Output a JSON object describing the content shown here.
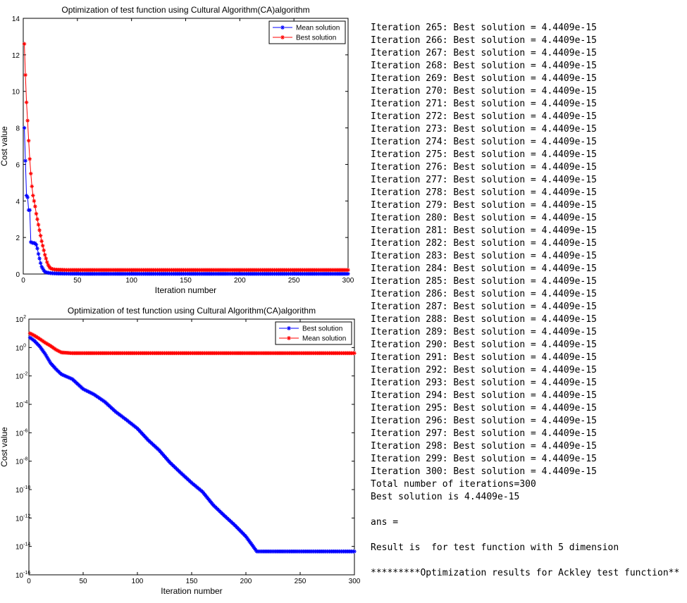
{
  "chart_data": [
    {
      "type": "line",
      "title": "Optimization of test function using Cultural Algorithm(CA)algorithm",
      "xlabel": "Iteration number",
      "ylabel": "Cost value",
      "xlim": [
        0,
        300
      ],
      "ylim": [
        0,
        14
      ],
      "xticks": [
        "0",
        "50",
        "100",
        "150",
        "200",
        "250",
        "300"
      ],
      "yticks": [
        "0",
        "2",
        "4",
        "6",
        "8",
        "10",
        "12",
        "14"
      ],
      "legend_position": "top-right",
      "series": [
        {
          "name": "Mean solution",
          "color": "#0000ff",
          "marker": "star",
          "points": [
            [
              1,
              8.0
            ],
            [
              2,
              6.2
            ],
            [
              3,
              4.3
            ],
            [
              4,
              4.2
            ],
            [
              5,
              3.5
            ],
            [
              6,
              3.5
            ],
            [
              7,
              1.75
            ],
            [
              8,
              1.72
            ],
            [
              9,
              1.7
            ],
            [
              10,
              1.7
            ],
            [
              11,
              1.68
            ],
            [
              12,
              1.6
            ],
            [
              13,
              1.4
            ],
            [
              14,
              1.1
            ],
            [
              15,
              0.85
            ],
            [
              16,
              0.6
            ],
            [
              17,
              0.4
            ],
            [
              18,
              0.3
            ],
            [
              19,
              0.2
            ],
            [
              20,
              0.12
            ],
            [
              22,
              0.08
            ],
            [
              25,
              0.05
            ],
            [
              30,
              0.03
            ],
            [
              40,
              0.02
            ],
            [
              60,
              0.01
            ],
            [
              100,
              0.01
            ],
            [
              150,
              0.01
            ],
            [
              200,
              0.01
            ],
            [
              250,
              0.01
            ],
            [
              300,
              0.01
            ]
          ]
        },
        {
          "name": "Best solution",
          "color": "#ff0000",
          "marker": "star",
          "points": [
            [
              1,
              12.6
            ],
            [
              2,
              10.9
            ],
            [
              3,
              9.4
            ],
            [
              4,
              8.4
            ],
            [
              5,
              7.3
            ],
            [
              6,
              6.3
            ],
            [
              7,
              5.5
            ],
            [
              8,
              4.8
            ],
            [
              9,
              4.3
            ],
            [
              10,
              4.0
            ],
            [
              11,
              3.7
            ],
            [
              12,
              3.3
            ],
            [
              13,
              3.0
            ],
            [
              14,
              2.7
            ],
            [
              15,
              2.4
            ],
            [
              16,
              2.1
            ],
            [
              17,
              1.8
            ],
            [
              18,
              1.55
            ],
            [
              19,
              1.3
            ],
            [
              20,
              1.05
            ],
            [
              21,
              0.85
            ],
            [
              22,
              0.65
            ],
            [
              23,
              0.5
            ],
            [
              24,
              0.4
            ],
            [
              25,
              0.32
            ],
            [
              27,
              0.27
            ],
            [
              30,
              0.24
            ],
            [
              40,
              0.22
            ],
            [
              60,
              0.22
            ],
            [
              100,
              0.22
            ],
            [
              150,
              0.22
            ],
            [
              200,
              0.22
            ],
            [
              250,
              0.22
            ],
            [
              300,
              0.22
            ]
          ]
        }
      ]
    },
    {
      "type": "line",
      "title": "Optimization of test function using Cultural Algorithm(CA)algorithm",
      "xlabel": "Iteration number",
      "ylabel": "Cost value",
      "xlim": [
        0,
        300
      ],
      "ylim": [
        1e-16,
        100
      ],
      "yscale": "log",
      "xticks": [
        "0",
        "50",
        "100",
        "150",
        "200",
        "250",
        "300"
      ],
      "yticks": [
        {
          "value": 100.0,
          "base": "10",
          "exp": "2"
        },
        {
          "value": 1.0,
          "base": "10",
          "exp": "0"
        },
        {
          "value": 0.01,
          "base": "10",
          "exp": "-2"
        },
        {
          "value": 0.0001,
          "base": "10",
          "exp": "-4"
        },
        {
          "value": 1e-06,
          "base": "10",
          "exp": "-6"
        },
        {
          "value": 1e-08,
          "base": "10",
          "exp": "-8"
        },
        {
          "value": 1e-10,
          "base": "10",
          "exp": "-10"
        },
        {
          "value": 1e-12,
          "base": "10",
          "exp": "-12"
        },
        {
          "value": 1e-14,
          "base": "10",
          "exp": "-14"
        },
        {
          "value": 1e-16,
          "base": "10",
          "exp": "-16"
        }
      ],
      "legend_position": "top-right",
      "series": [
        {
          "name": "Best solution",
          "color": "#0000ff",
          "marker": "star",
          "points": [
            [
              1,
              5
            ],
            [
              5,
              3
            ],
            [
              10,
              1.2
            ],
            [
              15,
              0.35
            ],
            [
              20,
              0.08
            ],
            [
              25,
              0.03
            ],
            [
              30,
              0.013
            ],
            [
              40,
              0.006
            ],
            [
              50,
              0.0012
            ],
            [
              60,
              0.0005
            ],
            [
              70,
              0.00015
            ],
            [
              80,
              3e-05
            ],
            [
              90,
              8e-06
            ],
            [
              100,
              2e-06
            ],
            [
              110,
              3e-07
            ],
            [
              120,
              6e-08
            ],
            [
              130,
              8e-09
            ],
            [
              140,
              1.5e-09
            ],
            [
              150,
              3e-10
            ],
            [
              160,
              7e-11
            ],
            [
              170,
              8e-12
            ],
            [
              180,
              1.5e-12
            ],
            [
              190,
              3e-13
            ],
            [
              200,
              5e-14
            ],
            [
              205,
              1.5e-14
            ],
            [
              210,
              4.4409e-15
            ],
            [
              250,
              4.4409e-15
            ],
            [
              300,
              4.4409e-15
            ]
          ]
        },
        {
          "name": "Mean solution",
          "color": "#ff0000",
          "marker": "star",
          "points": [
            [
              1,
              10
            ],
            [
              5,
              7
            ],
            [
              10,
              4
            ],
            [
              15,
              2.2
            ],
            [
              20,
              1.3
            ],
            [
              25,
              0.7
            ],
            [
              30,
              0.45
            ],
            [
              40,
              0.4
            ],
            [
              60,
              0.4
            ],
            [
              100,
              0.4
            ],
            [
              150,
              0.4
            ],
            [
              200,
              0.4
            ],
            [
              250,
              0.4
            ],
            [
              300,
              0.4
            ]
          ]
        }
      ]
    }
  ],
  "console": {
    "lines": [
      "Iteration 265: Best solution = 4.4409e-15",
      "Iteration 266: Best solution = 4.4409e-15",
      "Iteration 267: Best solution = 4.4409e-15",
      "Iteration 268: Best solution = 4.4409e-15",
      "Iteration 269: Best solution = 4.4409e-15",
      "Iteration 270: Best solution = 4.4409e-15",
      "Iteration 271: Best solution = 4.4409e-15",
      "Iteration 272: Best solution = 4.4409e-15",
      "Iteration 273: Best solution = 4.4409e-15",
      "Iteration 274: Best solution = 4.4409e-15",
      "Iteration 275: Best solution = 4.4409e-15",
      "Iteration 276: Best solution = 4.4409e-15",
      "Iteration 277: Best solution = 4.4409e-15",
      "Iteration 278: Best solution = 4.4409e-15",
      "Iteration 279: Best solution = 4.4409e-15",
      "Iteration 280: Best solution = 4.4409e-15",
      "Iteration 281: Best solution = 4.4409e-15",
      "Iteration 282: Best solution = 4.4409e-15",
      "Iteration 283: Best solution = 4.4409e-15",
      "Iteration 284: Best solution = 4.4409e-15",
      "Iteration 285: Best solution = 4.4409e-15",
      "Iteration 286: Best solution = 4.4409e-15",
      "Iteration 287: Best solution = 4.4409e-15",
      "Iteration 288: Best solution = 4.4409e-15",
      "Iteration 289: Best solution = 4.4409e-15",
      "Iteration 290: Best solution = 4.4409e-15",
      "Iteration 291: Best solution = 4.4409e-15",
      "Iteration 292: Best solution = 4.4409e-15",
      "Iteration 293: Best solution = 4.4409e-15",
      "Iteration 294: Best solution = 4.4409e-15",
      "Iteration 295: Best solution = 4.4409e-15",
      "Iteration 296: Best solution = 4.4409e-15",
      "Iteration 297: Best solution = 4.4409e-15",
      "Iteration 298: Best solution = 4.4409e-15",
      "Iteration 299: Best solution = 4.4409e-15",
      "Iteration 300: Best solution = 4.4409e-15",
      "Total number of iterations=300",
      "Best solution is 4.4409e-15",
      "",
      "ans =",
      "",
      "Result is  for test function with 5 dimension",
      "",
      "*********Optimization results for Ackley test function**"
    ]
  }
}
